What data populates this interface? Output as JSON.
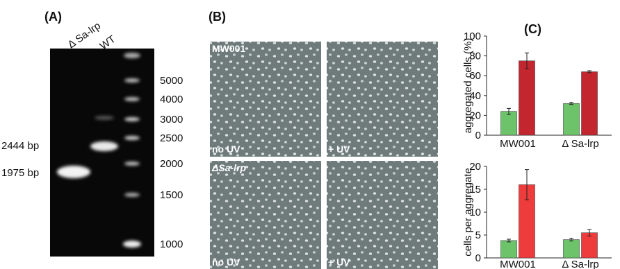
{
  "panel_a": {
    "label": "(A)",
    "lanes": [
      "Δ Sa-lrp",
      "WT"
    ],
    "bands": [
      "2444 bp",
      "1975 bp"
    ],
    "ladder": [
      5000,
      4000,
      3000,
      2500,
      2000,
      1500,
      1000
    ]
  },
  "panel_b": {
    "label": "(B)",
    "images": [
      {
        "strain": "MW001",
        "condition": "no UV"
      },
      {
        "condition": "+ UV"
      },
      {
        "strain": "ΔSa-lrp",
        "condition": "no UV"
      },
      {
        "condition": "+ UV"
      }
    ]
  },
  "panel_c": {
    "label": "(C)"
  },
  "chart_data": [
    {
      "type": "bar",
      "y_label": "aggregated cells (%)",
      "categories": [
        "MW001",
        "Δ Sa-lrp"
      ],
      "series": [
        {
          "color": "#6cc36a",
          "values": [
            24,
            32
          ],
          "errors": [
            3,
            1
          ]
        },
        {
          "color": "#c3262f",
          "values": [
            75,
            64
          ],
          "errors": [
            8,
            1
          ]
        }
      ],
      "ylim": [
        0,
        100
      ],
      "yticks": [
        0,
        20,
        40,
        60,
        80,
        100
      ]
    },
    {
      "type": "bar",
      "y_label": "cells per aggregate",
      "categories": [
        "MW001",
        "Δ Sa-lrp"
      ],
      "series": [
        {
          "color": "#6cc36a",
          "values": [
            3.8,
            4.0
          ],
          "errors": [
            0.3,
            0.3
          ]
        },
        {
          "color": "#ee3b3b",
          "values": [
            16,
            5.5
          ],
          "errors": [
            3.3,
            0.7
          ]
        }
      ],
      "ylim": [
        0,
        20
      ],
      "yticks": [
        0,
        5,
        10,
        15,
        20
      ]
    }
  ]
}
